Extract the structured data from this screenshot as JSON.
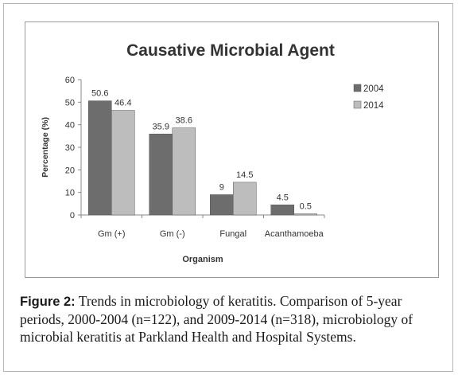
{
  "caption": {
    "label": "Figure 2:",
    "text": "Trends in microbiology of keratitis. Comparison of 5-year periods, 2000-2004 (n=122), and 2009-2014 (n=318), microbiology of microbial keratitis at Parkland Health and Hospital Systems."
  },
  "chart_data": {
    "type": "bar",
    "title": "Causative Microbial Agent",
    "xlabel": "Organism",
    "ylabel": "Percentage (%)",
    "ylim": [
      0,
      60
    ],
    "yticks": [
      "0",
      "10",
      "20",
      "30",
      "40",
      "50",
      "60"
    ],
    "categories": [
      "Gm (+)",
      "Gm (-)",
      "Fungal",
      "Acanthamoeba"
    ],
    "series": [
      {
        "name": "2004",
        "values": [
          50.6,
          35.9,
          9,
          4.5
        ],
        "labels": [
          "50.6",
          "35.9",
          "9",
          "4.5"
        ],
        "color": "#6d6d6d"
      },
      {
        "name": "2014",
        "values": [
          46.4,
          38.6,
          14.5,
          0.5
        ],
        "labels": [
          "46.4",
          "38.6",
          "14.5",
          "0.5"
        ],
        "color": "#bdbdbd"
      }
    ],
    "grid": false,
    "legend": "right"
  }
}
